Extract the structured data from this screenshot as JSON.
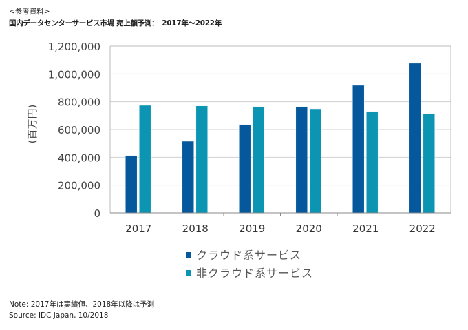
{
  "header": {
    "ref_label": "<参考資料>",
    "title": "国内データセンターサービス市場 売上額予測：　2017年～2022年"
  },
  "chart_data": {
    "type": "bar",
    "title": "国内データセンターサービス市場 売上額予測：　2017年～2022年",
    "xlabel": "",
    "ylabel": "(百万円)",
    "categories": [
      "2017",
      "2018",
      "2019",
      "2020",
      "2021",
      "2022"
    ],
    "series": [
      {
        "name": "クラウド系サービス",
        "color": "#04589B",
        "values": [
          412000,
          516000,
          635000,
          764000,
          918000,
          1077000
        ]
      },
      {
        "name": "非クラウド系サービス",
        "color": "#0B95B2",
        "values": [
          774000,
          770000,
          764000,
          749000,
          730000,
          714000
        ]
      }
    ],
    "ylim": [
      0,
      1200000
    ],
    "yticks": [
      0,
      200000,
      400000,
      600000,
      800000,
      1000000,
      1200000
    ],
    "ytick_labels": [
      "0",
      "200,000",
      "400,000",
      "600,000",
      "800,000",
      "1,000,000",
      "1,200,000"
    ],
    "grid": true,
    "legend": "bottom-center"
  },
  "footer": {
    "note": "Note: 2017年は実績値、2018年以降は予測",
    "source": "Source: IDC Japan, 10/2018"
  }
}
